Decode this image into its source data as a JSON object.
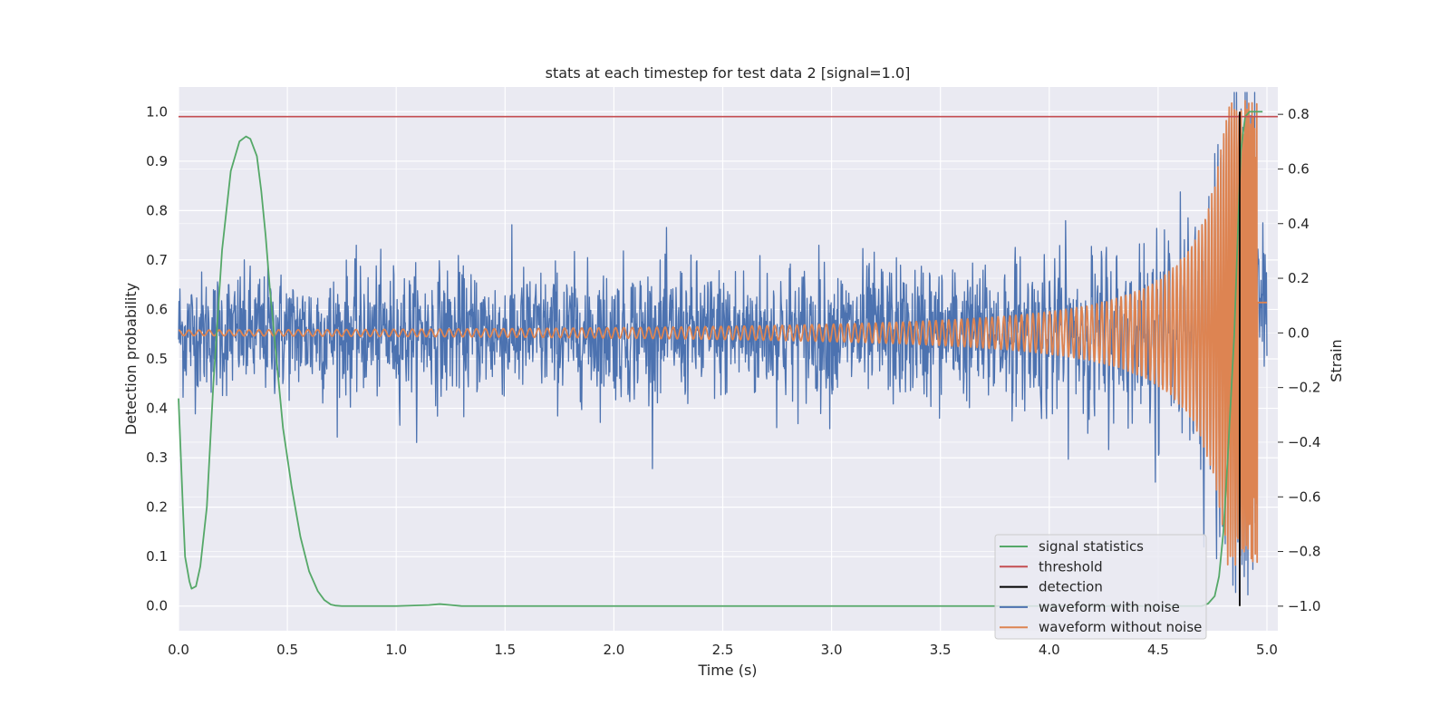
{
  "chart_data": {
    "type": "line",
    "title": "stats at each timestep for test data 2 [signal=1.0]",
    "xlabel": "Time (s)",
    "ylabel_left": "Detection probability",
    "ylabel_right": "Strain",
    "xlim": [
      0.0,
      5.05
    ],
    "ylim_left": [
      -0.05,
      1.05
    ],
    "ylim_right": [
      -1.09,
      0.9
    ],
    "x_ticks": [
      "0.0",
      "0.5",
      "1.0",
      "1.5",
      "2.0",
      "2.5",
      "3.0",
      "3.5",
      "4.0",
      "4.5",
      "5.0"
    ],
    "y_ticks_left": [
      "0.0",
      "0.1",
      "0.2",
      "0.3",
      "0.4",
      "0.5",
      "0.6",
      "0.7",
      "0.8",
      "0.9",
      "1.0"
    ],
    "y_ticks_right": [
      "−1.0",
      "−0.8",
      "−0.6",
      "−0.4",
      "−0.2",
      "0.0",
      "0.2",
      "0.4",
      "0.6",
      "0.8"
    ],
    "grid": true,
    "legend_position": "lower-right",
    "series": [
      {
        "name": "signal statistics",
        "axis": "left",
        "color": "#55a868",
        "x": [
          0.0,
          0.02,
          0.03,
          0.05,
          0.06,
          0.08,
          0.1,
          0.13,
          0.16,
          0.2,
          0.24,
          0.28,
          0.31,
          0.33,
          0.36,
          0.38,
          0.4,
          0.42,
          0.45,
          0.48,
          0.52,
          0.56,
          0.6,
          0.64,
          0.67,
          0.7,
          0.72,
          0.75,
          0.8,
          1.0,
          1.15,
          1.2,
          1.25,
          1.3,
          1.5,
          2.0,
          2.5,
          3.0,
          3.5,
          4.0,
          4.5,
          4.7,
          4.73,
          4.76,
          4.78,
          4.8,
          4.82,
          4.85,
          4.87,
          4.88,
          4.9,
          4.92,
          4.95,
          4.98
        ],
        "values": [
          0.42,
          0.2,
          0.1,
          0.05,
          0.035,
          0.04,
          0.08,
          0.2,
          0.45,
          0.72,
          0.88,
          0.94,
          0.95,
          0.945,
          0.91,
          0.84,
          0.75,
          0.64,
          0.5,
          0.36,
          0.24,
          0.14,
          0.07,
          0.03,
          0.012,
          0.003,
          0.001,
          0.0,
          0.0,
          0.0,
          0.002,
          0.004,
          0.002,
          0.0,
          0.0,
          0.0,
          0.0,
          0.0,
          0.0,
          0.0,
          0.0,
          0.0,
          0.005,
          0.02,
          0.06,
          0.15,
          0.3,
          0.55,
          0.8,
          0.92,
          0.99,
          1.0,
          1.0,
          1.0
        ]
      },
      {
        "name": "threshold",
        "axis": "left",
        "color": "#c44e52",
        "y": 0.99
      },
      {
        "name": "detection",
        "axis": "left",
        "color": "#000000",
        "x": 4.875,
        "y_range": [
          0.0,
          1.0
        ]
      },
      {
        "name": "waveform with noise",
        "axis": "right",
        "color": "#4c72b0",
        "x_range": [
          0.0,
          5.0
        ],
        "description_level": "noise amplitude ~0.3 strain, peaks up to ~0.85"
      },
      {
        "name": "waveform without noise",
        "axis": "right",
        "color": "#dd8452",
        "x_range": [
          0.0,
          5.0
        ],
        "start_amplitude": 0.01,
        "peak_amplitude": 0.85,
        "merger_time": 4.96
      }
    ],
    "legend": [
      "signal statistics",
      "threshold",
      "detection",
      "waveform with noise",
      "waveform without noise"
    ]
  }
}
